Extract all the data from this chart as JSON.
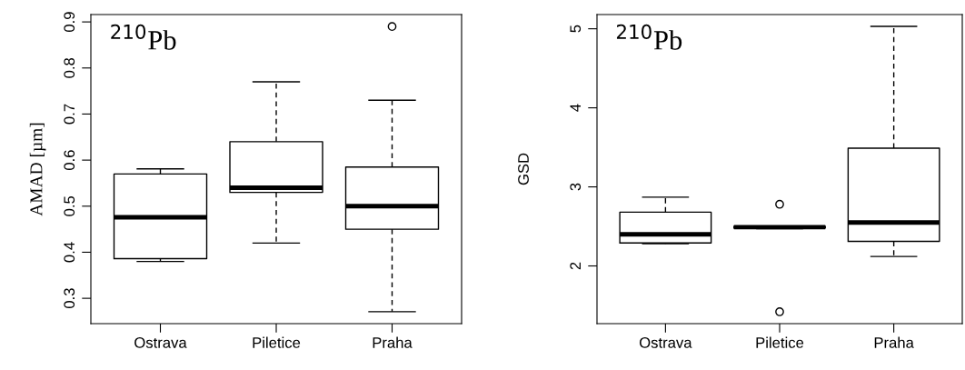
{
  "chart_data": [
    {
      "type": "box",
      "categories": [
        "Ostrava",
        "Piletice",
        "Praha"
      ],
      "ylabel": "AMAD [µm]",
      "ylim": [
        0.245,
        0.916
      ],
      "yticks": [
        0.3,
        0.4,
        0.5,
        0.6,
        0.7,
        0.8,
        0.9
      ],
      "annotations": [
        "$^{210}$Pb"
      ],
      "grid": false,
      "boxes": [
        {
          "low": 0.38,
          "q1": 0.386,
          "median": 0.476,
          "q3": 0.57,
          "high": 0.581
        },
        {
          "low": 0.42,
          "q1": 0.53,
          "median": 0.54,
          "q3": 0.64,
          "high": 0.77
        },
        {
          "low": 0.271,
          "q1": 0.45,
          "median": 0.5,
          "q3": 0.585,
          "high": 0.73,
          "outliers": [
            0.89
          ]
        }
      ]
    },
    {
      "type": "box",
      "categories": [
        "Ostrava",
        "Piletice",
        "Praha"
      ],
      "ylabel": "GSD",
      "ylim": [
        1.27,
        5.18
      ],
      "yticks": [
        2,
        3,
        4,
        5
      ],
      "annotations": [
        "$^{210}$Pb"
      ],
      "grid": false,
      "boxes": [
        {
          "low": 2.28,
          "q1": 2.29,
          "median": 2.4,
          "q3": 2.68,
          "high": 2.87
        },
        {
          "low": 2.47,
          "q1": 2.48,
          "median": 2.49,
          "q3": 2.5,
          "high": 2.5,
          "outliers": [
            2.78,
            1.42
          ]
        },
        {
          "low": 2.12,
          "q1": 2.31,
          "median": 2.55,
          "q3": 3.49,
          "high": 5.03
        }
      ]
    }
  ]
}
